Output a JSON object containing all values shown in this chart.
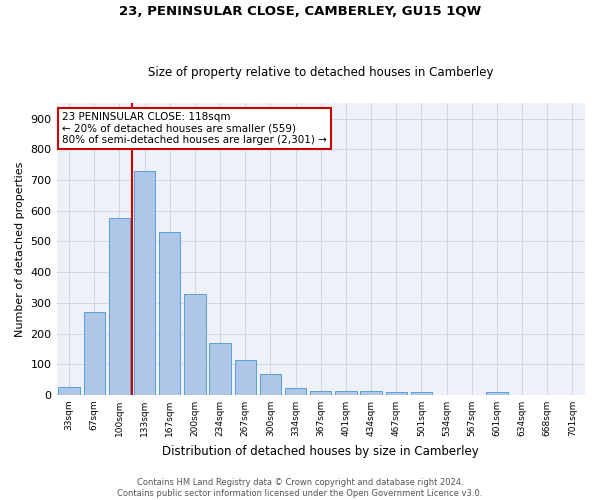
{
  "title": "23, PENINSULAR CLOSE, CAMBERLEY, GU15 1QW",
  "subtitle": "Size of property relative to detached houses in Camberley",
  "xlabel": "Distribution of detached houses by size in Camberley",
  "ylabel": "Number of detached properties",
  "bar_labels": [
    "33sqm",
    "67sqm",
    "100sqm",
    "133sqm",
    "167sqm",
    "200sqm",
    "234sqm",
    "267sqm",
    "300sqm",
    "334sqm",
    "367sqm",
    "401sqm",
    "434sqm",
    "467sqm",
    "501sqm",
    "534sqm",
    "567sqm",
    "601sqm",
    "634sqm",
    "668sqm",
    "701sqm"
  ],
  "bar_heights": [
    25,
    270,
    575,
    730,
    530,
    330,
    170,
    115,
    68,
    22,
    13,
    13,
    13,
    10,
    8,
    0,
    0,
    8,
    0,
    0,
    0
  ],
  "bar_color": "#aec6e8",
  "bar_edge_color": "#5a9fd4",
  "grid_color": "#d0d8e8",
  "background_color": "#eef2f8",
  "vline_x": 2.5,
  "vline_color": "#cc0000",
  "annotation_text": "23 PENINSULAR CLOSE: 118sqm\n← 20% of detached houses are smaller (559)\n80% of semi-detached houses are larger (2,301) →",
  "annotation_box_color": "#cc0000",
  "footer_text": "Contains HM Land Registry data © Crown copyright and database right 2024.\nContains public sector information licensed under the Open Government Licence v3.0.",
  "ylim": [
    0,
    950
  ],
  "yticks": [
    0,
    100,
    200,
    300,
    400,
    500,
    600,
    700,
    800,
    900
  ]
}
